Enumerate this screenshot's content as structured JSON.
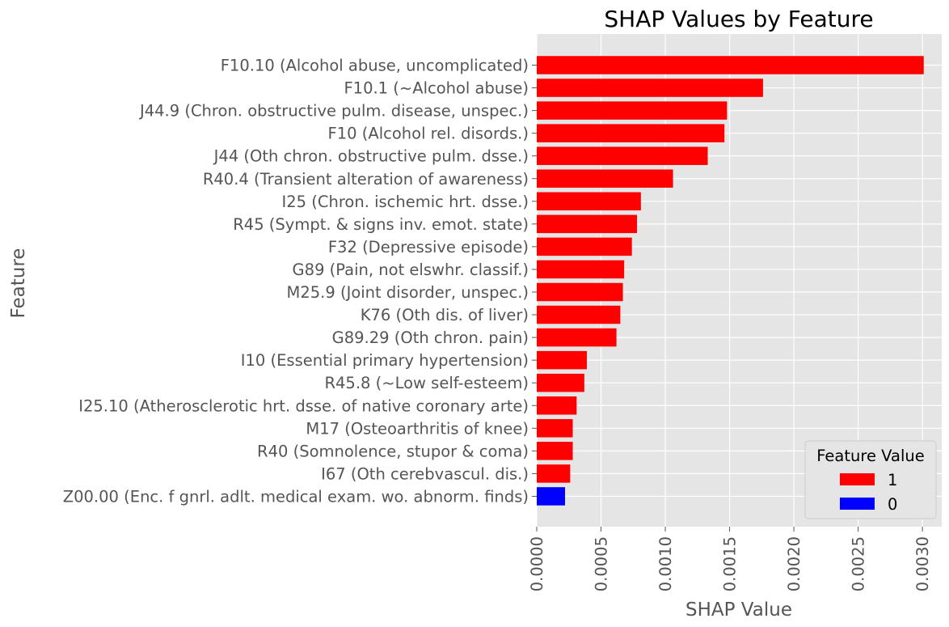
{
  "chart_data": {
    "type": "bar",
    "orientation": "horizontal",
    "title": "SHAP Values by Feature",
    "xlabel": "SHAP Value",
    "ylabel": "Feature",
    "xlim": [
      0,
      0.00315
    ],
    "xticks": [
      "0.0000",
      "0.0005",
      "0.0010",
      "0.0015",
      "0.0020",
      "0.0025",
      "0.0030"
    ],
    "xtick_values": [
      0,
      0.0005,
      0.001,
      0.0015,
      0.002,
      0.0025,
      0.003
    ],
    "grid": true,
    "legend": {
      "title": "Feature Value",
      "placement": "lower-right",
      "entries": [
        {
          "label": "1",
          "color": "#ff0000"
        },
        {
          "label": "0",
          "color": "#0000ff"
        }
      ]
    },
    "colors": {
      "1": "#ff0000",
      "0": "#0000ff",
      "background": "#e5e5e5",
      "grid": "#ffffff"
    },
    "categories": [
      "F10.10 (Alcohol abuse, uncomplicated)",
      "F10.1 (~Alcohol abuse)",
      "J44.9 (Chron. obstructive pulm. disease, unspec.)",
      "F10 (Alcohol rel. disords.)",
      "J44 (Oth chron. obstructive pulm. dsse.)",
      "R40.4 (Transient alteration of awareness)",
      "I25 (Chron. ischemic hrt. dsse.)",
      "R45 (Sympt. & signs inv. emot. state)",
      "F32 (Depressive episode)",
      "G89 (Pain, not elswhr. classif.)",
      "M25.9 (Joint disorder, unspec.)",
      "K76 (Oth dis. of liver)",
      "G89.29 (Oth chron. pain)",
      "I10 (Essential primary hypertension)",
      "R45.8 (~Low self-esteem)",
      "I25.10 (Atherosclerotic hrt. dsse. of native coronary arte)",
      "M17 (Osteoarthritis of knee)",
      "R40 (Somnolence, stupor & coma)",
      "I67 (Oth cerebvascul. dis.)",
      "Z00.00 (Enc. f gnrl. adlt. medical exam. wo. abnorm. finds)"
    ],
    "values": [
      0.00301,
      0.00176,
      0.00148,
      0.00146,
      0.00133,
      0.00106,
      0.00081,
      0.00078,
      0.00074,
      0.00068,
      0.00067,
      0.00065,
      0.00062,
      0.00039,
      0.00037,
      0.00031,
      0.00028,
      0.00028,
      0.00026,
      0.00022
    ],
    "feature_values": [
      "1",
      "1",
      "1",
      "1",
      "1",
      "1",
      "1",
      "1",
      "1",
      "1",
      "1",
      "1",
      "1",
      "1",
      "1",
      "1",
      "1",
      "1",
      "1",
      "0"
    ]
  }
}
